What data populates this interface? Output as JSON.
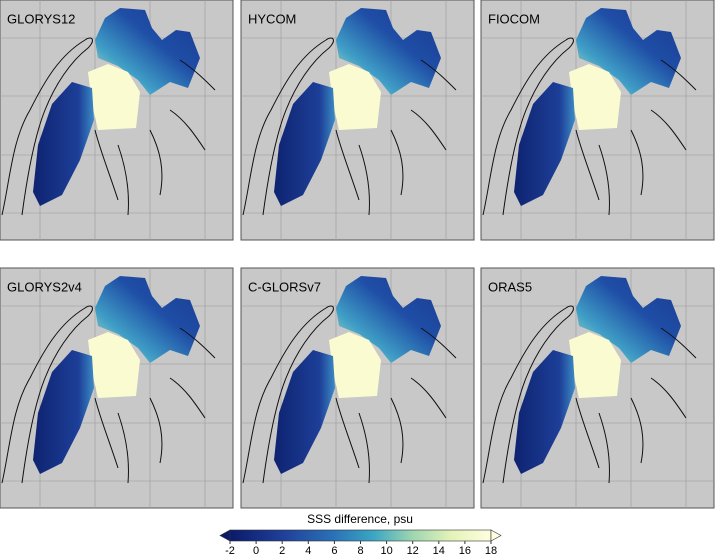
{
  "panels": [
    {
      "title": "GLORYS12"
    },
    {
      "title": "HYCOM"
    },
    {
      "title": "FIOCOM"
    },
    {
      "title": "GLORYS2v4"
    },
    {
      "title": "C-GLORSv7"
    },
    {
      "title": "ORAS5"
    }
  ],
  "colorbar": {
    "label": "SSS difference, psu",
    "lim": [
      -2,
      18
    ],
    "ticks": [
      -2,
      0,
      2,
      4,
      6,
      8,
      10,
      12,
      14,
      16,
      18
    ]
  }
}
